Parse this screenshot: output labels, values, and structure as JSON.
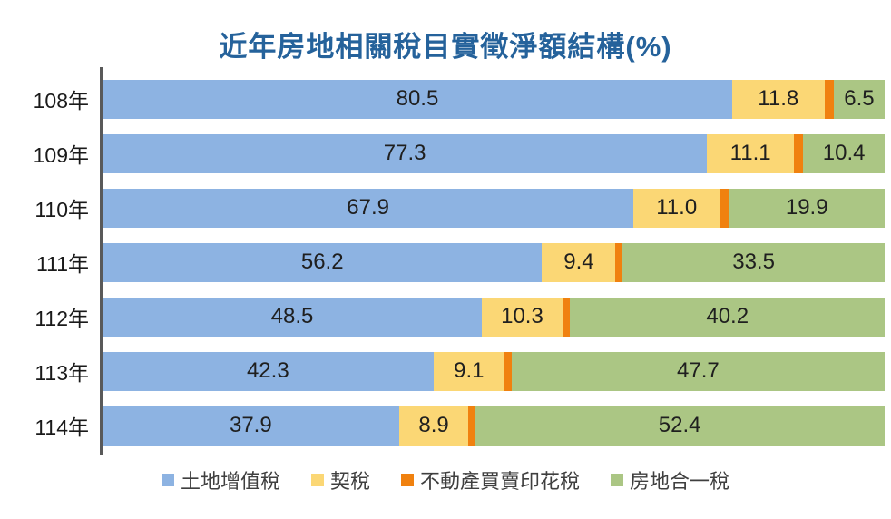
{
  "title": "近年房地相關稅目實徵淨額結構(%)",
  "colors": {
    "title_text": "#25629B",
    "axis_line": "#595959",
    "land_value_increment_tax": "#8DB3E2",
    "deed_tax": "#FBD775",
    "real_estate_sale_stamp_tax": "#F0810F",
    "house_land_unified_income_tax": "#ABC684"
  },
  "chart_data": {
    "type": "bar",
    "orientation": "horizontal",
    "stacked": true,
    "title": "近年房地相關稅目實徵淨額結構(%)",
    "categories": [
      "108年",
      "109年",
      "110年",
      "111年",
      "112年",
      "113年",
      "114年"
    ],
    "series": [
      {
        "id": "land-value-increment-tax",
        "name": "土地增值稅",
        "color": "#8DB3E2",
        "labels_shown": true,
        "values": [
          80.5,
          77.3,
          67.9,
          56.2,
          48.5,
          42.3,
          37.9
        ]
      },
      {
        "id": "deed-tax",
        "name": "契稅",
        "color": "#FBD775",
        "labels_shown": true,
        "values": [
          11.8,
          11.1,
          11.0,
          9.4,
          10.3,
          9.1,
          8.9
        ]
      },
      {
        "id": "real-estate-sale-stamp-tax",
        "name": "不動產買賣印花稅",
        "color": "#F0810F",
        "labels_shown": false,
        "note": "segment values not labeled in chart; estimated from segment widths (remainder to 100%)",
        "values": [
          1.2,
          1.2,
          1.2,
          0.9,
          1.0,
          0.9,
          0.8
        ]
      },
      {
        "id": "house-land-unified-income-tax",
        "name": "房地合一稅",
        "color": "#ABC684",
        "labels_shown": true,
        "values": [
          6.5,
          10.4,
          19.9,
          33.5,
          40.2,
          47.7,
          52.4
        ]
      }
    ],
    "xlim": [
      0,
      100
    ],
    "value_unit": "%",
    "grid": false,
    "legend_position": "bottom"
  }
}
